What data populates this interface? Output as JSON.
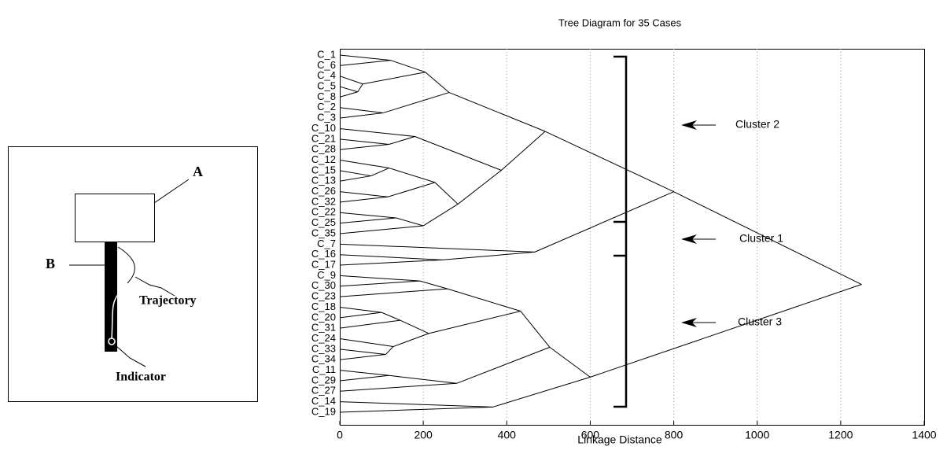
{
  "diagram": {
    "label_a": "A",
    "label_b": "B",
    "trajectory": "Trajectory",
    "indicator": "Indicator"
  },
  "chart_data": {
    "type": "dendrogram",
    "title": "Tree Diagram for 35 Cases",
    "x_label": "Linkage Distance",
    "xlim": [
      0,
      1400
    ],
    "xticks": [
      0,
      200,
      400,
      600,
      800,
      1000,
      1200,
      1400
    ],
    "grid": true,
    "color": "#000000",
    "annotations": [
      "Cluster 2",
      "Cluster 1",
      "Cluster 3"
    ],
    "tree": {
      "distance": 1250,
      "children": [
        {
          "distance": 800,
          "children": [
            {
              "distance": 492,
              "children": [
                {
                  "distance": 262,
                  "children": [
                    {
                      "distance": 205,
                      "children": [
                        {
                          "distance": 122,
                          "children": [
                            "C_1",
                            "C_6"
                          ]
                        },
                        {
                          "distance": 55,
                          "children": [
                            "C_4",
                            {
                              "distance": 43,
                              "children": [
                                "C_5",
                                "C_8"
                              ]
                            }
                          ]
                        }
                      ]
                    },
                    {
                      "distance": 104,
                      "children": [
                        "C_2",
                        "C_3"
                      ]
                    }
                  ]
                },
                {
                  "distance": 387,
                  "children": [
                    {
                      "distance": 180,
                      "children": [
                        "C_10",
                        {
                          "distance": 118,
                          "children": [
                            "C_21",
                            "C_28"
                          ]
                        }
                      ]
                    },
                    {
                      "distance": 283,
                      "children": [
                        {
                          "distance": 228,
                          "children": [
                            {
                              "distance": 118,
                              "children": [
                                "C_12",
                                {
                                  "distance": 75,
                                  "children": [
                                    "C_15",
                                    "C_13"
                                  ]
                                }
                              ]
                            },
                            {
                              "distance": 115,
                              "children": [
                                "C_26",
                                "C_32"
                              ]
                            }
                          ]
                        },
                        {
                          "distance": 200,
                          "children": [
                            {
                              "distance": 135,
                              "children": [
                                "C_22",
                                "C_25"
                              ]
                            },
                            "C_35"
                          ]
                        }
                      ]
                    }
                  ]
                }
              ]
            },
            {
              "distance": 467,
              "children": [
                "C_7",
                {
                  "distance": 245,
                  "children": [
                    "C_16",
                    "C_17"
                  ]
                }
              ]
            }
          ]
        },
        {
          "distance": 600,
          "children": [
            {
              "distance": 503,
              "children": [
                {
                  "distance": 433,
                  "children": [
                    {
                      "distance": 258,
                      "children": [
                        {
                          "distance": 192,
                          "children": [
                            "C_9",
                            "C_30"
                          ]
                        },
                        "C_23"
                      ]
                    },
                    {
                      "distance": 213,
                      "children": [
                        {
                          "distance": 145,
                          "children": [
                            {
                              "distance": 100,
                              "children": [
                                "C_18",
                                "C_20"
                              ]
                            },
                            "C_31"
                          ]
                        },
                        {
                          "distance": 128,
                          "children": [
                            "C_24",
                            {
                              "distance": 110,
                              "children": [
                                "C_33",
                                "C_34"
                              ]
                            }
                          ]
                        }
                      ]
                    }
                  ]
                },
                {
                  "distance": 280,
                  "children": [
                    {
                      "distance": 118,
                      "children": [
                        "C_11",
                        "C_29"
                      ]
                    },
                    "C_27"
                  ]
                }
              ]
            },
            {
              "distance": 367,
              "children": [
                "C_14",
                "C_19"
              ]
            }
          ]
        }
      ]
    }
  }
}
